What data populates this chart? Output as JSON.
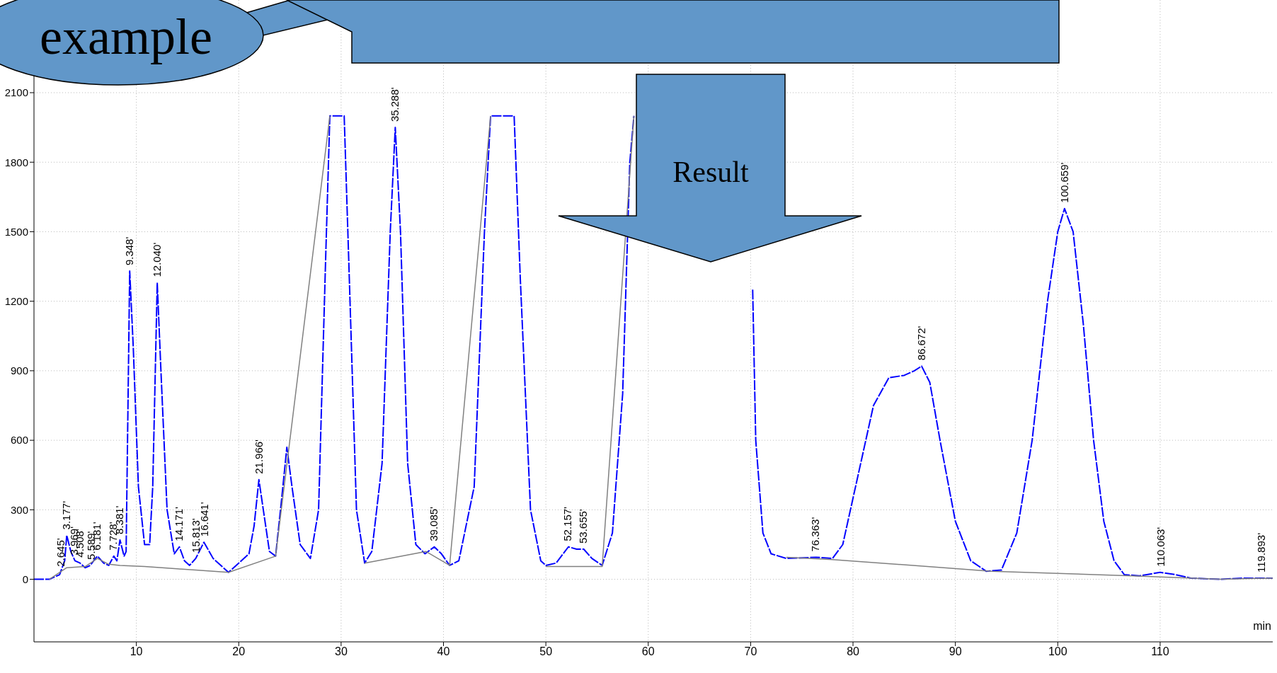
{
  "chart_data": {
    "type": "line",
    "xlabel": "min",
    "xlim": [
      0,
      121
    ],
    "xticks": [
      10,
      20,
      30,
      40,
      50,
      60,
      70,
      80,
      90,
      100,
      110
    ],
    "ylim": [
      -270,
      2500
    ],
    "yticks": [
      0,
      300,
      600,
      900,
      1200,
      1500,
      1800,
      2100
    ],
    "grid": true,
    "legend": false,
    "marker": "none",
    "series": [
      {
        "color": "#0000ff",
        "line_style": "dashed",
        "x": [
          0,
          1.5,
          2.5,
          3.0,
          3.2,
          3.6,
          4.0,
          4.5,
          5.0,
          5.5,
          6.0,
          6.2,
          6.8,
          7.3,
          7.8,
          8.1,
          8.4,
          8.8,
          9.0,
          9.35,
          9.7,
          10.2,
          10.8,
          11.3,
          11.6,
          12.04,
          12.4,
          13.0,
          13.7,
          14.2,
          14.7,
          15.2,
          15.8,
          16.6,
          17.5,
          18.5,
          19.0,
          20.0,
          21.0,
          21.5,
          21.97,
          22.4,
          23.0,
          23.6,
          24.2,
          24.7,
          25.2,
          26.0,
          27.0,
          27.8,
          28.5,
          28.9,
          30.3,
          30.8,
          31.5,
          32.3,
          33.0,
          34.0,
          34.8,
          35.29,
          35.8,
          36.5,
          37.3,
          38.2,
          39.1,
          39.8,
          40.6,
          41.5,
          43.0,
          44.0,
          44.6,
          46.9,
          47.5,
          48.5,
          49.5,
          50.0,
          51.0,
          52.2,
          53.0,
          53.7,
          54.5,
          55.5,
          56.5,
          57.5,
          58.2,
          58.6,
          64.0,
          70.2,
          70.5,
          71.2,
          72.0,
          73.5,
          76.4,
          78.0,
          79.0,
          80.5,
          82.0,
          83.5,
          85.0,
          86.0,
          86.7,
          87.5,
          88.5,
          90.0,
          91.5,
          93.0,
          94.5,
          96.0,
          97.5,
          99.0,
          100.0,
          100.66,
          101.5,
          102.5,
          103.5,
          104.5,
          105.5,
          106.5,
          108.0,
          110.0,
          111.5,
          113.0,
          116.0,
          118.0,
          121.0
        ],
        "values": [
          0,
          0,
          20,
          80,
          190,
          120,
          80,
          70,
          50,
          60,
          90,
          100,
          70,
          60,
          100,
          80,
          170,
          100,
          120,
          1330,
          1000,
          400,
          150,
          150,
          400,
          1280,
          900,
          300,
          110,
          140,
          80,
          60,
          90,
          160,
          90,
          50,
          30,
          70,
          110,
          230,
          430,
          300,
          120,
          100,
          350,
          570,
          400,
          150,
          90,
          300,
          1400,
          2000,
          2000,
          1300,
          300,
          70,
          120,
          500,
          1500,
          1950,
          1500,
          500,
          150,
          110,
          140,
          110,
          60,
          80,
          400,
          1500,
          2000,
          2000,
          1300,
          300,
          80,
          60,
          70,
          140,
          130,
          130,
          90,
          60,
          200,
          800,
          1800,
          2000,
          null,
          1250,
          600,
          200,
          110,
          90,
          95,
          90,
          150,
          450,
          750,
          870,
          880,
          900,
          920,
          850,
          600,
          250,
          80,
          35,
          40,
          200,
          600,
          1200,
          1500,
          1600,
          1500,
          1100,
          600,
          250,
          80,
          20,
          15,
          30,
          20,
          5,
          0,
          5,
          5
        ]
      },
      {
        "color": "#808080",
        "line_style": "solid",
        "x": [
          1.5,
          3.2,
          5.0,
          6.2,
          7.3,
          8.4,
          10.8,
          14.0,
          15.8,
          19.0,
          23.6,
          28.9,
          30.5,
          32.3,
          38.3,
          40.6,
          44.6,
          47.0,
          50.0,
          55.5,
          58.6,
          65.0,
          73.5,
          78.0,
          93.5,
          107.3,
          115.9,
          121.0
        ],
        "values": [
          0,
          50,
          55,
          90,
          65,
          60,
          55,
          45,
          40,
          30,
          100,
          2000,
          null,
          70,
          120,
          60,
          2000,
          null,
          55,
          55,
          2000,
          null,
          95,
          85,
          35,
          15,
          0,
          5
        ]
      }
    ],
    "annotations": [
      "example",
      "Result",
      {
        "text": "2.645'",
        "x": 2.645,
        "y": 30
      },
      {
        "text": "3.177'",
        "x": 3.177,
        "y": 190
      },
      {
        "text": "3.969'",
        "x": 3.969,
        "y": 80
      },
      {
        "text": "4.508'",
        "x": 4.508,
        "y": 70
      },
      {
        "text": "5.589'",
        "x": 5.589,
        "y": 60
      },
      {
        "text": "6.181'",
        "x": 6.181,
        "y": 100
      },
      {
        "text": "7.728'",
        "x": 7.728,
        "y": 100
      },
      {
        "text": "8.381'",
        "x": 8.381,
        "y": 170
      },
      {
        "text": "9.348'",
        "x": 9.348,
        "y": 1330
      },
      {
        "text": "12.040'",
        "x": 12.04,
        "y": 1280
      },
      {
        "text": "14.171'",
        "x": 14.171,
        "y": 140
      },
      {
        "text": "15.813'",
        "x": 15.813,
        "y": 90
      },
      {
        "text": "16.641'",
        "x": 16.641,
        "y": 160
      },
      {
        "text": "21.966'",
        "x": 21.966,
        "y": 430
      },
      {
        "text": "35.288'",
        "x": 35.288,
        "y": 1950
      },
      {
        "text": "39.085'",
        "x": 39.085,
        "y": 140
      },
      {
        "text": "52.157'",
        "x": 52.157,
        "y": 140
      },
      {
        "text": "53.655'",
        "x": 53.655,
        "y": 130
      },
      {
        "text": "76.363'",
        "x": 76.363,
        "y": 95
      },
      {
        "text": "86.672'",
        "x": 86.672,
        "y": 920
      },
      {
        "text": "100.659'",
        "x": 100.659,
        "y": 1600
      },
      {
        "text": "110.063'",
        "x": 110.063,
        "y": 30
      },
      {
        "text": "119.893'",
        "x": 119.893,
        "y": 5
      }
    ]
  }
}
